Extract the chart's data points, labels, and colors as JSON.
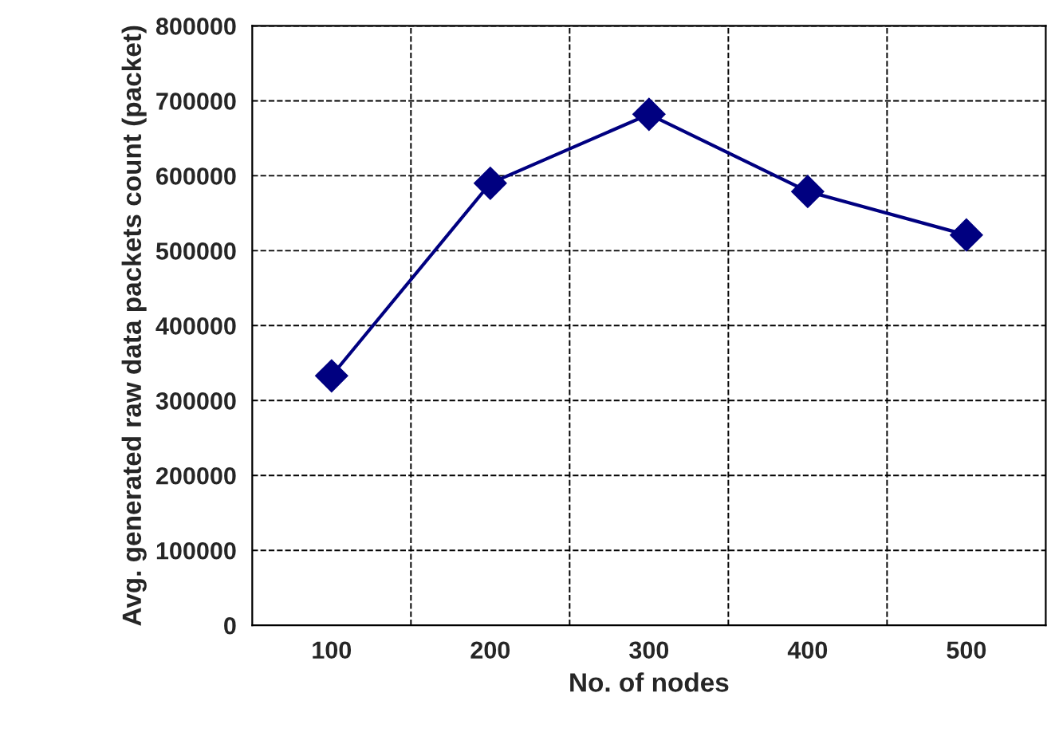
{
  "chart_data": {
    "type": "line",
    "xlabel": "No. of nodes",
    "ylabel": "Avg. generated raw data packets count (packet)",
    "categories": [
      "100",
      "200",
      "300",
      "400",
      "500"
    ],
    "series": [
      {
        "color": "#000080",
        "values": [
          333000,
          590000,
          682000,
          579000,
          521000
        ]
      }
    ],
    "ylim": [
      0,
      800000
    ],
    "yticks": [
      0,
      100000,
      200000,
      300000,
      400000,
      500000,
      600000,
      700000,
      800000
    ],
    "grid": true,
    "marker": "diamond",
    "line_style": "solid"
  }
}
